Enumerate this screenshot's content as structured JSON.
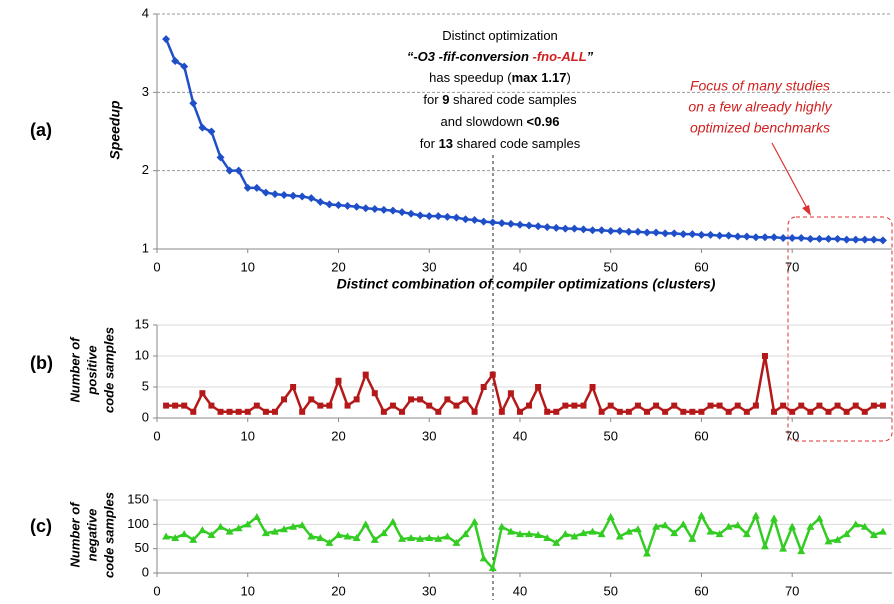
{
  "chart_data": [
    {
      "type": "line",
      "panel": "(a)",
      "ylabel": "Speedup",
      "xlabel": "Distinct combination of  compiler optimizations (clusters)",
      "annotation": [
        [
          "Distinct optimization"
        ],
        [
          "“-O3 -fif-conversion ",
          "-fno-ALL",
          "”"
        ],
        [
          "has speedup (",
          "max 1.17",
          ")"
        ],
        [
          "for ",
          "9",
          " shared code samples"
        ],
        [
          "and slowdown ",
          "<0.96"
        ],
        [
          "for ",
          "13",
          " shared code samples"
        ]
      ],
      "note": [
        "Focus of many studies",
        "on a few already highly",
        "optimized benchmarks"
      ],
      "color": "#1f4fc8",
      "marker": "diamond",
      "grid": "dashed",
      "x": [
        1,
        2,
        3,
        4,
        5,
        6,
        7,
        8,
        9,
        10,
        11,
        12,
        13,
        14,
        15,
        16,
        17,
        18,
        19,
        20,
        21,
        22,
        23,
        24,
        25,
        26,
        27,
        28,
        29,
        30,
        31,
        32,
        33,
        34,
        35,
        36,
        37,
        38,
        39,
        40,
        41,
        42,
        43,
        44,
        45,
        46,
        47,
        48,
        49,
        50,
        51,
        52,
        53,
        54,
        55,
        56,
        57,
        58,
        59,
        60,
        61,
        62,
        63,
        64,
        65,
        66,
        67,
        68,
        69,
        70,
        71,
        72,
        73,
        74,
        75,
        76,
        77,
        78,
        79,
        80
      ],
      "values": [
        3.68,
        3.4,
        3.33,
        2.86,
        2.55,
        2.5,
        2.17,
        2.0,
        2.0,
        1.78,
        1.78,
        1.72,
        1.7,
        1.69,
        1.68,
        1.67,
        1.65,
        1.6,
        1.57,
        1.56,
        1.55,
        1.54,
        1.52,
        1.51,
        1.5,
        1.49,
        1.47,
        1.45,
        1.43,
        1.42,
        1.42,
        1.41,
        1.4,
        1.38,
        1.37,
        1.35,
        1.34,
        1.33,
        1.32,
        1.31,
        1.3,
        1.29,
        1.28,
        1.27,
        1.26,
        1.26,
        1.25,
        1.24,
        1.24,
        1.23,
        1.23,
        1.22,
        1.22,
        1.21,
        1.21,
        1.2,
        1.2,
        1.19,
        1.19,
        1.18,
        1.18,
        1.17,
        1.17,
        1.16,
        1.16,
        1.15,
        1.15,
        1.15,
        1.14,
        1.14,
        1.14,
        1.13,
        1.13,
        1.13,
        1.13,
        1.12,
        1.12,
        1.12,
        1.12,
        1.11
      ],
      "xlim": [
        0,
        81
      ],
      "xticks": [
        0,
        10,
        20,
        30,
        40,
        50,
        60,
        70
      ],
      "ylim": [
        1,
        4
      ],
      "yticks": [
        1,
        2,
        3,
        4
      ]
    },
    {
      "type": "line",
      "panel": "(b)",
      "ylabel": [
        "Number of",
        "positive",
        "code samples"
      ],
      "color": "#b41818",
      "marker": "square",
      "grid": "solid",
      "x": [
        1,
        2,
        3,
        4,
        5,
        6,
        7,
        8,
        9,
        10,
        11,
        12,
        13,
        14,
        15,
        16,
        17,
        18,
        19,
        20,
        21,
        22,
        23,
        24,
        25,
        26,
        27,
        28,
        29,
        30,
        31,
        32,
        33,
        34,
        35,
        36,
        37,
        38,
        39,
        40,
        41,
        42,
        43,
        44,
        45,
        46,
        47,
        48,
        49,
        50,
        51,
        52,
        53,
        54,
        55,
        56,
        57,
        58,
        59,
        60,
        61,
        62,
        63,
        64,
        65,
        66,
        67,
        68,
        69,
        70,
        71,
        72,
        73,
        74,
        75,
        76,
        77,
        78,
        79,
        80
      ],
      "values": [
        2,
        2,
        2,
        1,
        4,
        2,
        1,
        1,
        1,
        1,
        2,
        1,
        1,
        3,
        5,
        1,
        3,
        2,
        2,
        6,
        2,
        3,
        7,
        4,
        1,
        2,
        1,
        3,
        3,
        2,
        1,
        3,
        2,
        3,
        1,
        5,
        7,
        1,
        4,
        1,
        2,
        5,
        1,
        1,
        2,
        2,
        2,
        5,
        1,
        2,
        1,
        1,
        2,
        1,
        2,
        1,
        2,
        1,
        1,
        1,
        2,
        2,
        1,
        2,
        1,
        2,
        10,
        1,
        2,
        1,
        2,
        1,
        2,
        1,
        2,
        1,
        2,
        1,
        2,
        2
      ],
      "xlim": [
        0,
        81
      ],
      "xticks": [
        0,
        10,
        20,
        30,
        40,
        50,
        60,
        70
      ],
      "ylim": [
        0,
        15
      ],
      "yticks": [
        0,
        5,
        10,
        15
      ]
    },
    {
      "type": "line",
      "panel": "(c)",
      "ylabel": [
        "Number of",
        "negative",
        "code samples"
      ],
      "color": "#33cc22",
      "marker": "triangle",
      "grid": "solid",
      "x": [
        1,
        2,
        3,
        4,
        5,
        6,
        7,
        8,
        9,
        10,
        11,
        12,
        13,
        14,
        15,
        16,
        17,
        18,
        19,
        20,
        21,
        22,
        23,
        24,
        25,
        26,
        27,
        28,
        29,
        30,
        31,
        32,
        33,
        34,
        35,
        36,
        37,
        38,
        39,
        40,
        41,
        42,
        43,
        44,
        45,
        46,
        47,
        48,
        49,
        50,
        51,
        52,
        53,
        54,
        55,
        56,
        57,
        58,
        59,
        60,
        61,
        62,
        63,
        64,
        65,
        66,
        67,
        68,
        69,
        70,
        71,
        72,
        73,
        74,
        75,
        76,
        77,
        78,
        79,
        80
      ],
      "values": [
        75,
        72,
        80,
        68,
        88,
        78,
        95,
        85,
        92,
        100,
        115,
        82,
        85,
        90,
        95,
        98,
        75,
        72,
        62,
        78,
        75,
        72,
        100,
        68,
        82,
        105,
        70,
        72,
        70,
        72,
        70,
        75,
        62,
        80,
        105,
        30,
        10,
        95,
        85,
        80,
        80,
        78,
        72,
        62,
        80,
        75,
        82,
        85,
        80,
        115,
        75,
        85,
        90,
        40,
        95,
        98,
        82,
        100,
        70,
        118,
        85,
        80,
        95,
        98,
        80,
        118,
        55,
        112,
        50,
        95,
        45,
        95,
        112,
        65,
        68,
        80,
        100,
        95,
        78,
        85
      ],
      "xlim": [
        0,
        81
      ],
      "xticks": [
        0,
        10,
        20,
        30,
        40,
        50,
        60,
        70
      ],
      "ylim": [
        0,
        150
      ],
      "yticks": [
        0,
        50,
        100,
        150
      ]
    }
  ]
}
